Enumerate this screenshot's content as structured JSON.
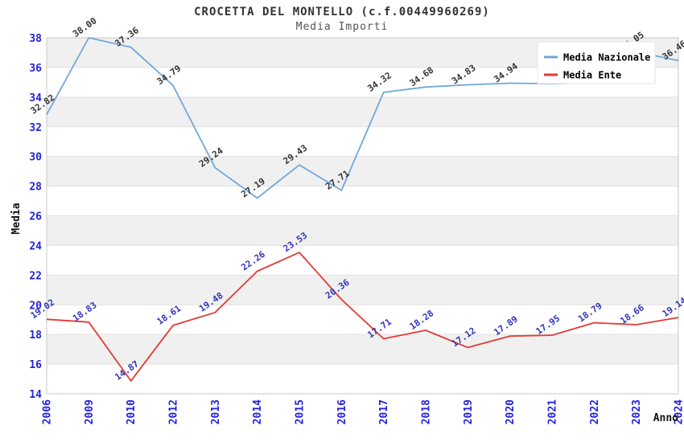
{
  "chart_data": {
    "type": "line",
    "title": "CROCETTA DEL MONTELLO (c.f.00449960269)",
    "subtitle": "Media Importi",
    "xlabel": "Anno",
    "ylabel": "Media",
    "ylim": [
      14,
      38
    ],
    "ytick_step": 2,
    "grid": "horizontal-bands-alternating",
    "legend_position": "top-right",
    "categories": [
      "2006",
      "2009",
      "2010",
      "2012",
      "2013",
      "2014",
      "2015",
      "2016",
      "2017",
      "2018",
      "2019",
      "2020",
      "2021",
      "2022",
      "2023",
      "2024"
    ],
    "series": [
      {
        "name": "Media Nazionale",
        "color": "#6FA8DC",
        "label_color": "#333333",
        "values": [
          32.82,
          38.0,
          37.36,
          34.79,
          29.24,
          27.19,
          29.43,
          27.71,
          34.32,
          34.68,
          34.83,
          34.94,
          34.9,
          34.97,
          37.05,
          36.46
        ],
        "labels": [
          "32.82",
          "38.00",
          "37.36",
          "34.79",
          "29.24",
          "27.19",
          "29.43",
          "27.71",
          "34.32",
          "34.68",
          "34.83",
          "34.94",
          "",
          "",
          "37.05",
          "36.46"
        ]
      },
      {
        "name": "Media Ente",
        "color": "#E53935",
        "label_color": "#3333BB",
        "values": [
          19.02,
          18.83,
          14.87,
          18.61,
          19.48,
          22.26,
          23.53,
          20.36,
          17.71,
          18.28,
          17.12,
          17.89,
          17.95,
          18.79,
          18.66,
          19.14
        ],
        "labels": [
          "19.02",
          "18.83",
          "14.87",
          "18.61",
          "19.48",
          "22.26",
          "23.53",
          "20.36",
          "17.71",
          "18.28",
          "17.12",
          "17.89",
          "17.95",
          "18.79",
          "18.66",
          "19.14"
        ]
      }
    ],
    "colors": {
      "tick_label": "#2222DD",
      "band_gray": "#F0F0F0",
      "grid_line": "#E2E2E2",
      "plot_border": "#C9C9C9",
      "axis_title": "#111111",
      "legend_bg": "#FFFFFF",
      "legend_border": "#E6E6E6",
      "legend_text": "#000000"
    }
  }
}
